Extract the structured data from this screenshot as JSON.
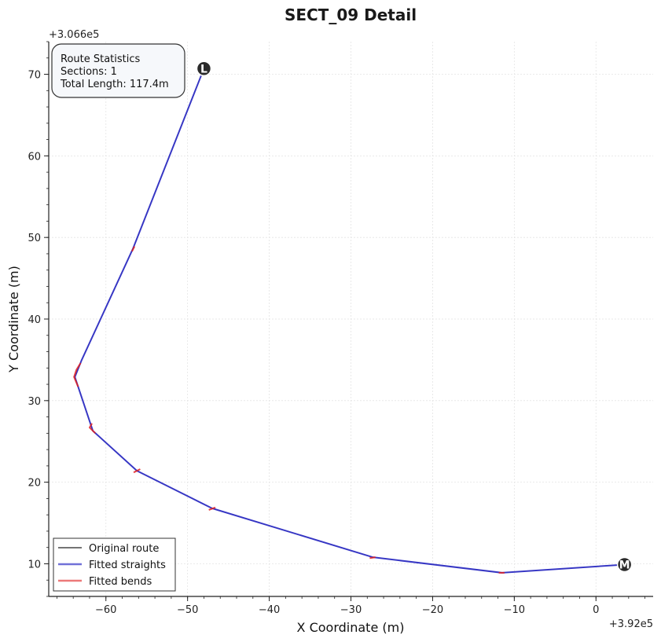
{
  "chart_data": {
    "type": "line",
    "title": "SECT_09 Detail",
    "xlabel": "X Coordinate (m)",
    "ylabel": "Y Coordinate (m)",
    "x_offset_label": "+3.92e5",
    "y_offset_label": "+3.066e5",
    "xlim": [
      -67,
      7
    ],
    "ylim": [
      6,
      74
    ],
    "x_ticks": [
      -60,
      -50,
      -40,
      -30,
      -20,
      -10,
      0
    ],
    "y_ticks": [
      10,
      20,
      30,
      40,
      50,
      60,
      70
    ],
    "grid": true,
    "legend_position": "lower-left",
    "route": {
      "x": [
        3.5,
        -11.5,
        -27.3,
        -47.0,
        -56.2,
        -61.6,
        -63.8,
        -63.0,
        -56.7,
        -48.0
      ],
      "y": [
        9.9,
        8.9,
        10.8,
        16.8,
        21.4,
        26.3,
        32.9,
        34.9,
        48.6,
        70.7
      ]
    },
    "bends": [
      {
        "x": [
          -11.2,
          -11.9
        ],
        "y": [
          8.9,
          8.9
        ]
      },
      {
        "x": [
          -27.0,
          -27.7
        ],
        "y": [
          10.8,
          10.7
        ]
      },
      {
        "x": [
          -46.6,
          -47.4
        ],
        "y": [
          16.9,
          16.6
        ]
      },
      {
        "x": [
          -55.8,
          -56.6
        ],
        "y": [
          21.6,
          21.2
        ]
      },
      {
        "x": [
          -61.3,
          -62.0,
          -61.7
        ],
        "y": [
          26.0,
          26.7,
          27.2
        ]
      },
      {
        "x": [
          -63.4,
          -63.9,
          -63.6,
          -63.1
        ],
        "y": [
          31.7,
          32.9,
          33.8,
          34.6
        ]
      },
      {
        "x": [
          -56.8,
          -56.5
        ],
        "y": [
          48.3,
          48.9
        ]
      }
    ],
    "markers": [
      {
        "label": "L",
        "x": -48.0,
        "y": 70.7
      },
      {
        "label": "M",
        "x": 3.5,
        "y": 9.9
      }
    ],
    "colors": {
      "straight": "#3535c8",
      "bend": "#e02020",
      "original": "#222222",
      "marker": "#2a2a2a"
    },
    "stats": {
      "heading": "Route Statistics",
      "sections": "Sections: 1",
      "length": "Total Length: 117.4m"
    },
    "legend": [
      {
        "label": "Original route",
        "key": "original"
      },
      {
        "label": "Fitted straights",
        "key": "straight"
      },
      {
        "label": "Fitted bends",
        "key": "bend"
      }
    ]
  }
}
